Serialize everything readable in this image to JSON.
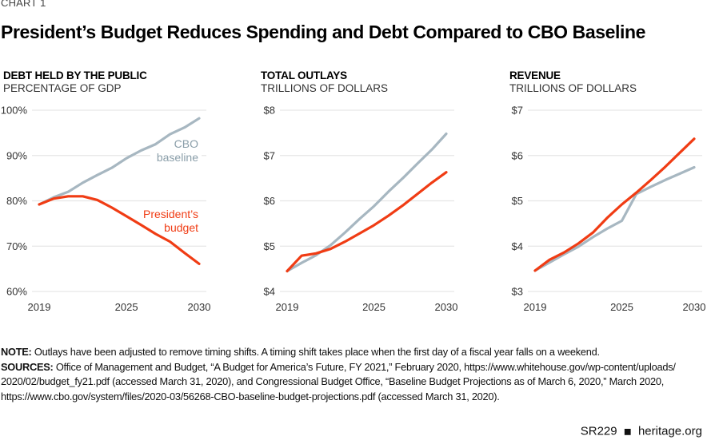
{
  "header": {
    "chart_label": "CHART 1",
    "title": "President’s Budget Reduces Spending and Debt Compared to CBO Baseline"
  },
  "chart_data": [
    {
      "type": "line",
      "title": "DEBT HELD BY THE PUBLIC",
      "subtitle": "PERCENTAGE OF GDP",
      "x": [
        2019,
        2020,
        2021,
        2022,
        2023,
        2024,
        2025,
        2026,
        2027,
        2028,
        2029,
        2030
      ],
      "x_tick_labels": [
        "2019",
        "2025",
        "2030"
      ],
      "x_ticks": [
        2019,
        2025,
        2030
      ],
      "ylim": [
        60,
        100
      ],
      "y_ticks": [
        60,
        70,
        80,
        90,
        100
      ],
      "y_tick_labels": [
        "60%",
        "70%",
        "80%",
        "90%",
        "100%"
      ],
      "grid": true,
      "series": [
        {
          "name": "CBO baseline",
          "color": "#a7b7c1",
          "label_lines": [
            "CBO",
            "baseline"
          ],
          "label_pos": "upper-right",
          "values": [
            79.2,
            80.8,
            82.0,
            84.0,
            85.7,
            87.3,
            89.4,
            91.1,
            92.5,
            94.7,
            96.2,
            98.2
          ]
        },
        {
          "name": "President’s budget",
          "color": "#f03c14",
          "label_lines": [
            "President’s",
            "budget"
          ],
          "label_pos": "middle-right",
          "values": [
            79.2,
            80.5,
            81.0,
            81.0,
            80.2,
            78.5,
            76.6,
            74.7,
            72.7,
            71.0,
            68.5,
            66.1
          ]
        }
      ]
    },
    {
      "type": "line",
      "title": "TOTAL OUTLAYS",
      "subtitle": "TRILLIONS OF DOLLARS",
      "x": [
        2019,
        2020,
        2021,
        2022,
        2023,
        2024,
        2025,
        2026,
        2027,
        2028,
        2029,
        2030
      ],
      "x_tick_labels": [
        "2019",
        "2025",
        "2030"
      ],
      "x_ticks": [
        2019,
        2025,
        2030
      ],
      "ylim": [
        4,
        8
      ],
      "y_ticks": [
        4,
        5,
        6,
        7,
        8
      ],
      "y_tick_labels": [
        "$4",
        "$5",
        "$6",
        "$7",
        "$8"
      ],
      "grid": true,
      "series": [
        {
          "name": "CBO baseline",
          "color": "#a7b7c1",
          "values": [
            4.45,
            4.63,
            4.8,
            5.02,
            5.3,
            5.6,
            5.88,
            6.2,
            6.5,
            6.82,
            7.13,
            7.48
          ]
        },
        {
          "name": "President’s budget",
          "color": "#f03c14",
          "values": [
            4.45,
            4.79,
            4.84,
            4.94,
            5.1,
            5.28,
            5.46,
            5.67,
            5.9,
            6.15,
            6.4,
            6.63
          ]
        }
      ]
    },
    {
      "type": "line",
      "title": "REVENUE",
      "subtitle": "TRILLIONS OF DOLLARS",
      "x": [
        2019,
        2020,
        2021,
        2022,
        2023,
        2024,
        2025,
        2026,
        2027,
        2028,
        2029,
        2030
      ],
      "x_tick_labels": [
        "2019",
        "2025",
        "2030"
      ],
      "x_ticks": [
        2019,
        2025,
        2030
      ],
      "ylim": [
        3,
        7
      ],
      "y_ticks": [
        3,
        4,
        5,
        6,
        7
      ],
      "y_tick_labels": [
        "$3",
        "$4",
        "$5",
        "$6",
        "$7"
      ],
      "grid": true,
      "series": [
        {
          "name": "CBO baseline",
          "color": "#a7b7c1",
          "values": [
            3.46,
            3.64,
            3.82,
            3.99,
            4.2,
            4.39,
            4.56,
            5.15,
            5.31,
            5.46,
            5.6,
            5.74
          ]
        },
        {
          "name": "President’s budget",
          "color": "#f03c14",
          "values": [
            3.46,
            3.7,
            3.86,
            4.06,
            4.3,
            4.63,
            4.92,
            5.18,
            5.46,
            5.75,
            6.06,
            6.37
          ]
        }
      ]
    }
  ],
  "notes": {
    "note_label": "NOTE:",
    "note_text": " Outlays have been adjusted to remove timing shifts. A timing shift takes place when the first day of a fiscal year falls on a weekend.",
    "sources_label": "SOURCES:",
    "sources_line1": " Office of Management and Budget, “A Budget for America’s Future, FY 2021,” February 2020, https://www.whitehouse.gov/wp-content/uploads/",
    "sources_line2": "2020/02/budget_fy21.pdf (accessed March 31, 2020), and Congressional Budget Office, “Baseline Budget Projections as of March 6, 2020,” March 2020,",
    "sources_line3": "https://www.cbo.gov/system/files/2020-03/56268-CBO-baseline-budget-projections.pdf (accessed March 31, 2020)."
  },
  "footer": {
    "report_id": "SR229",
    "icon": "liberty-bell-icon",
    "site": "heritage.org"
  }
}
